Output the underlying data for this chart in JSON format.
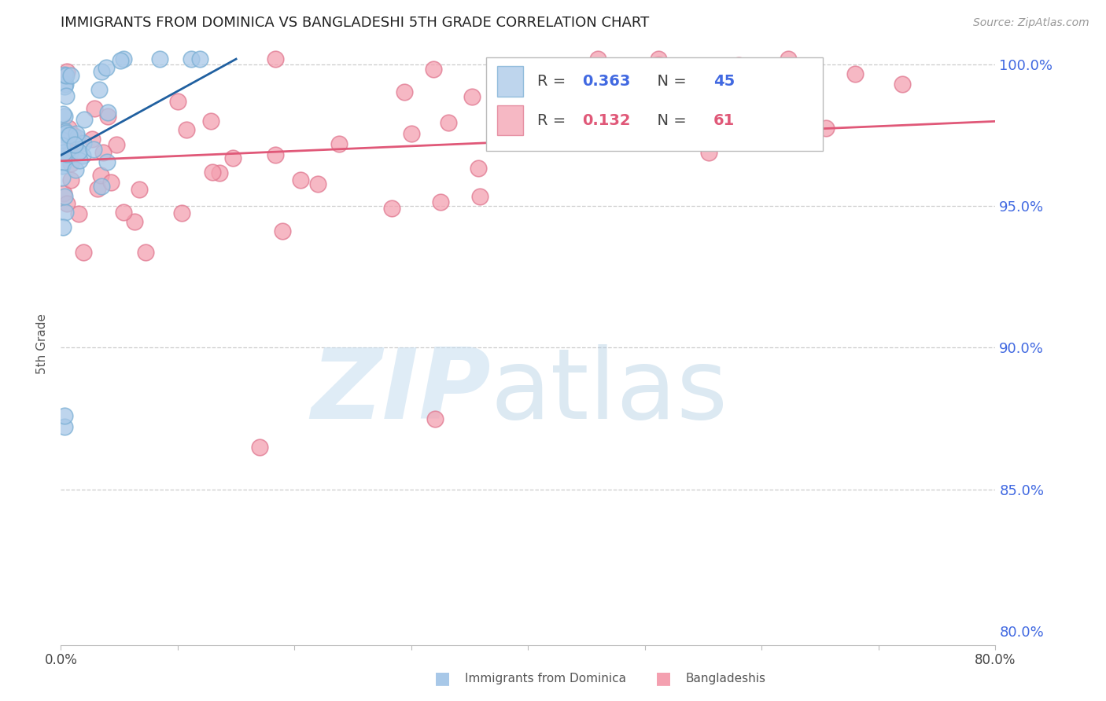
{
  "title": "IMMIGRANTS FROM DOMINICA VS BANGLADESHI 5TH GRADE CORRELATION CHART",
  "source": "Source: ZipAtlas.com",
  "ylabel": "5th Grade",
  "xlim": [
    0.0,
    0.8
  ],
  "ylim": [
    0.795,
    1.008
  ],
  "xtick_vals": [
    0.0,
    0.1,
    0.2,
    0.3,
    0.4,
    0.5,
    0.6,
    0.7,
    0.8
  ],
  "xtick_labels": [
    "0.0%",
    "",
    "",
    "",
    "",
    "",
    "",
    "",
    "80.0%"
  ],
  "ytick_vals": [
    0.8,
    0.85,
    0.9,
    0.95,
    1.0
  ],
  "ytick_labels": [
    "80.0%",
    "85.0%",
    "90.0%",
    "95.0%",
    "100.0%"
  ],
  "blue_color": "#a8c8e8",
  "blue_edge_color": "#7aafd4",
  "blue_line_color": "#2060a0",
  "pink_color": "#f4a0b0",
  "pink_edge_color": "#e07890",
  "pink_line_color": "#e05878",
  "right_tick_color": "#4169e1",
  "grid_color": "#cccccc",
  "background_color": "#ffffff",
  "title_color": "#222222",
  "source_color": "#999999",
  "R_blue": 0.363,
  "N_blue": 45,
  "R_pink": 0.132,
  "N_pink": 61,
  "watermark_zip_color": "#c5ddf0",
  "watermark_atlas_color": "#a8c8e0"
}
